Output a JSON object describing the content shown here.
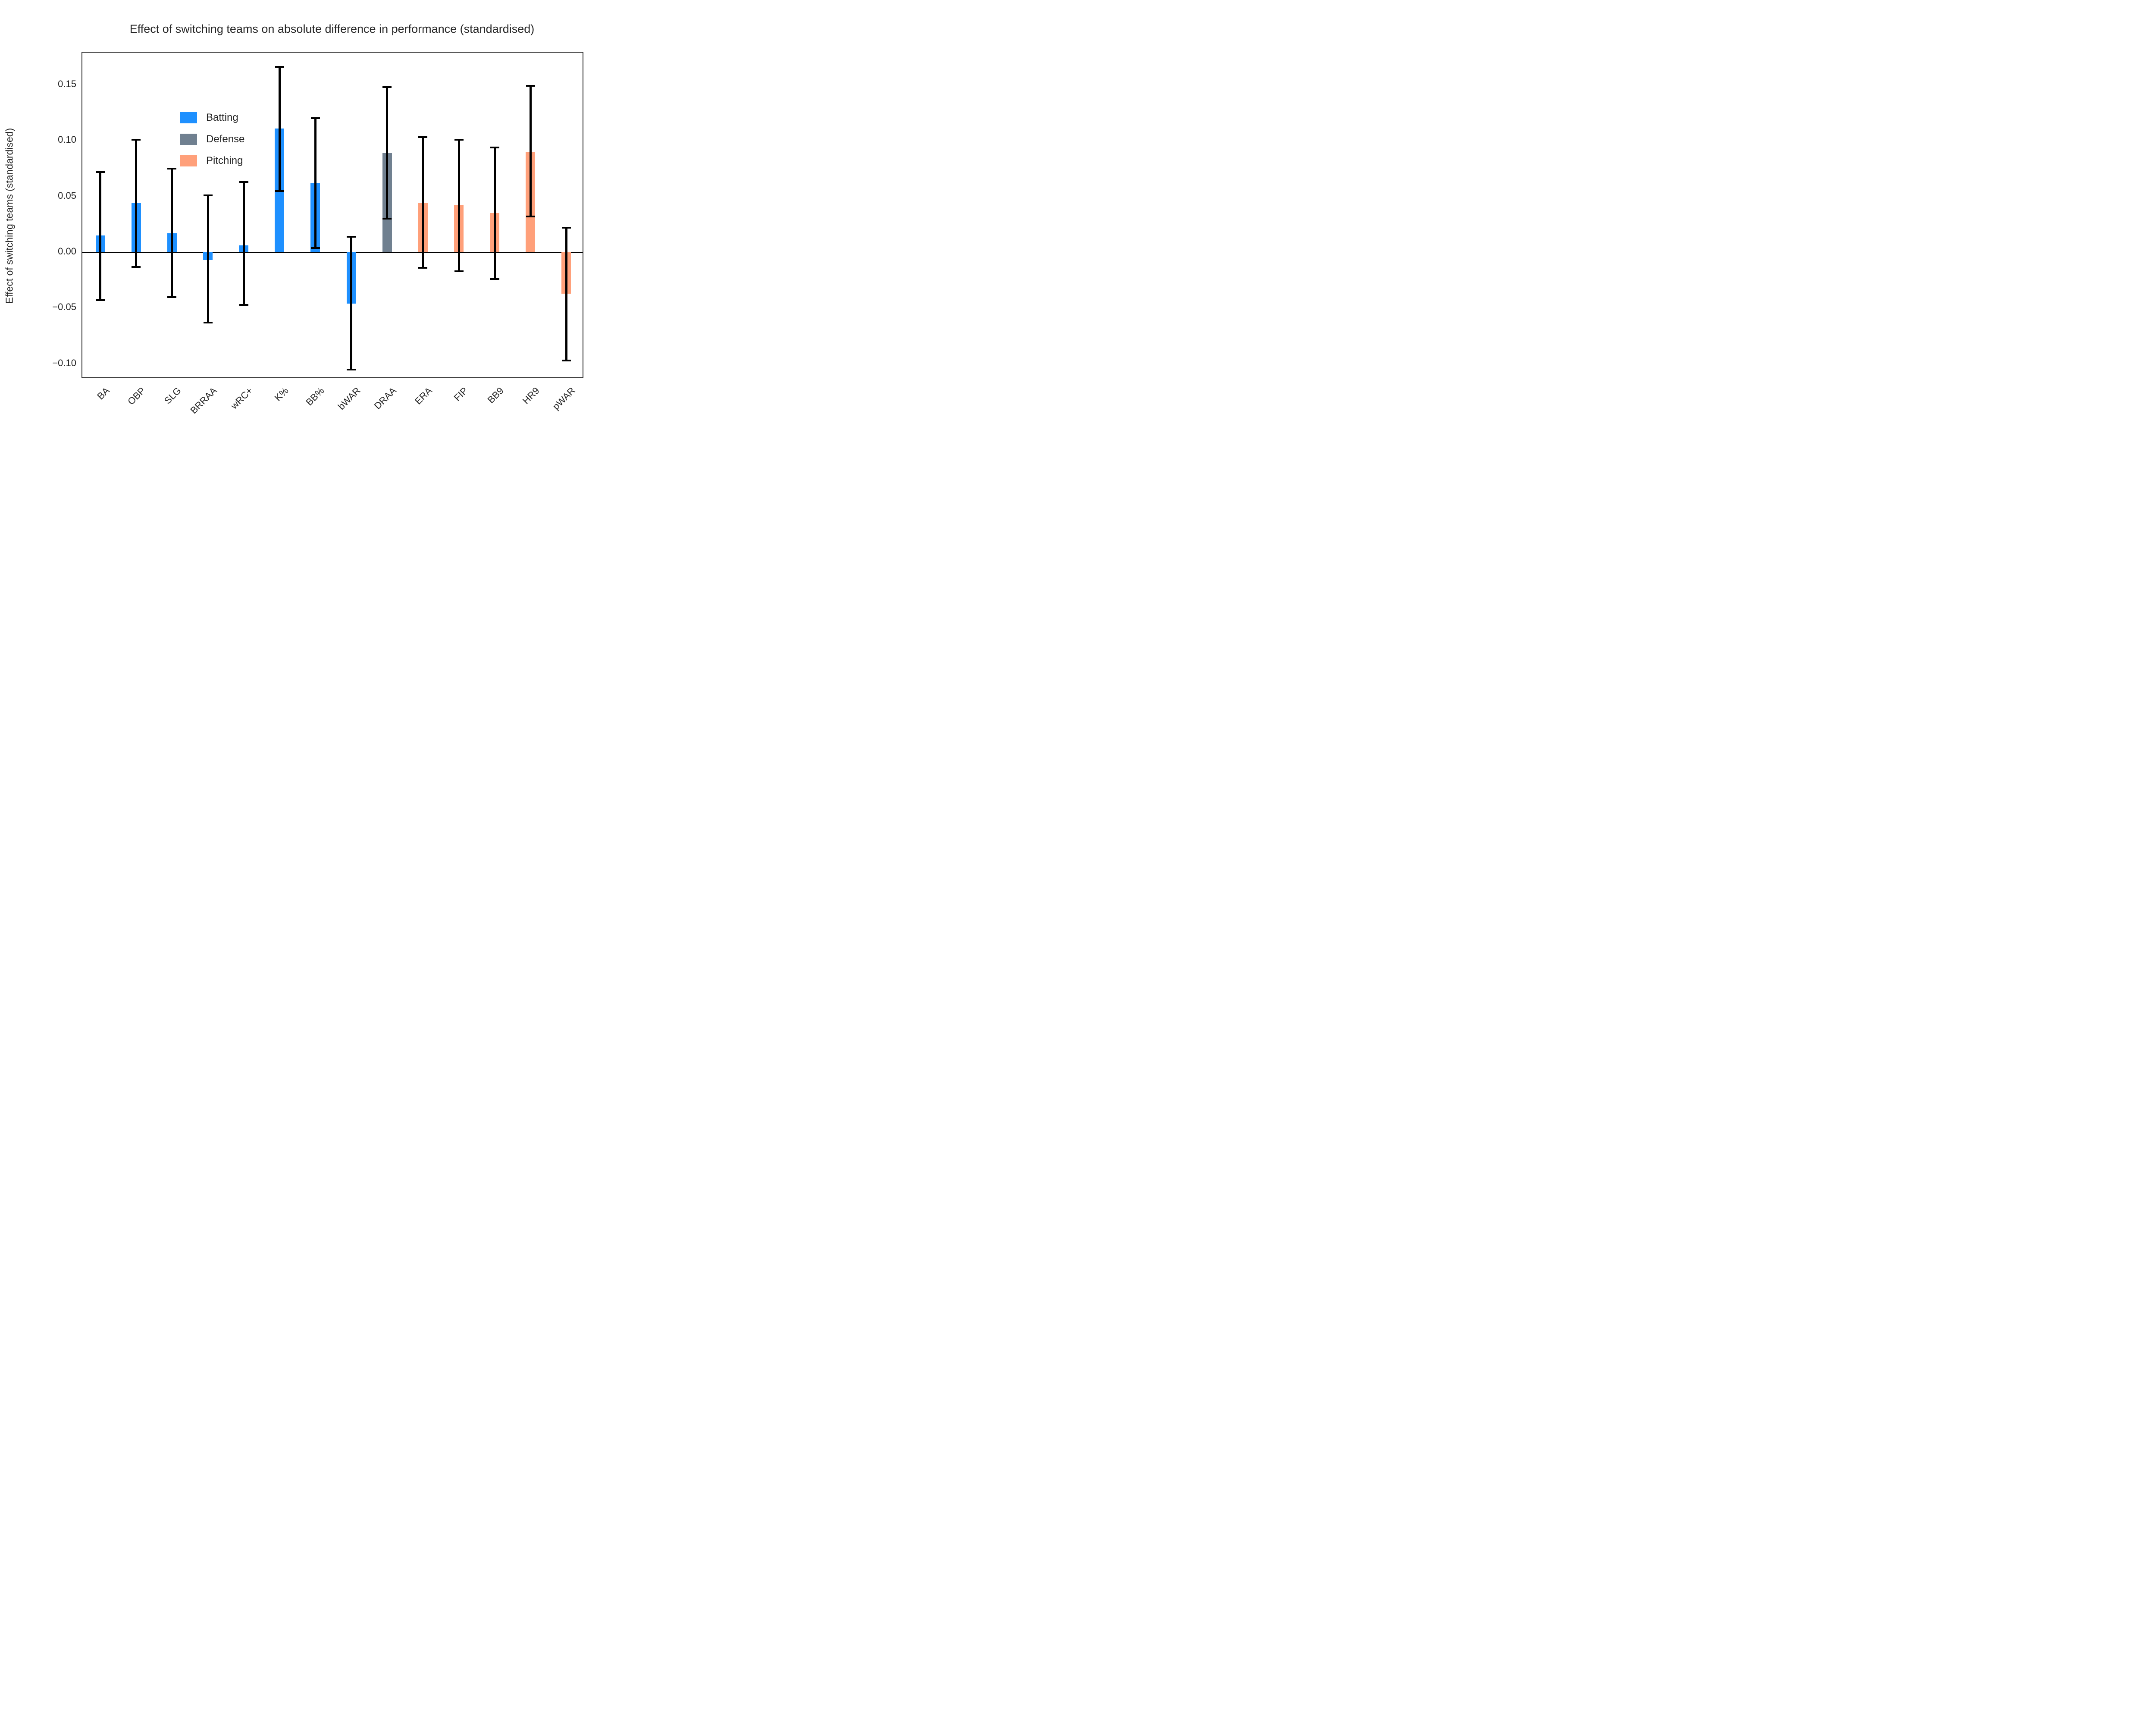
{
  "title": "Effect of switching teams on absolute difference in performance (standardised)",
  "ylabel": "Effect of switching teams (standardised)",
  "colors": {
    "batting": "#1E90FF",
    "defense": "#708090",
    "pitching": "#FFA07A",
    "errorbar": "#000000",
    "axis": "#262626",
    "background": "#ffffff"
  },
  "legend": {
    "position": "upper left",
    "items": [
      {
        "label": "Batting",
        "color": "#1E90FF"
      },
      {
        "label": "Defense",
        "color": "#708090"
      },
      {
        "label": "Pitching",
        "color": "#FFA07A"
      }
    ]
  },
  "chart_data": {
    "type": "bar",
    "title": "Effect of switching teams on absolute difference in performance (standardised)",
    "xlabel": "",
    "ylabel": "Effect of switching teams (standardised)",
    "grid": false,
    "legend_position": "upper left",
    "ylim": [
      -0.1136,
      0.1789
    ],
    "yticks": [
      0.15,
      0.1,
      0.05,
      0.0,
      -0.05,
      -0.1
    ],
    "ytick_labels": [
      "0.15",
      "0.10",
      "0.05",
      "0.00",
      "−0.05",
      "−0.10"
    ],
    "categories": [
      "BA",
      "OBP",
      "SLG",
      "BRRAA",
      "wRC+",
      "K%",
      "BB%",
      "bWAR",
      "DRAA",
      "ERA",
      "FIP",
      "BB9",
      "HR9",
      "pWAR"
    ],
    "groups": [
      "batting",
      "batting",
      "batting",
      "batting",
      "batting",
      "batting",
      "batting",
      "batting",
      "defense",
      "pitching",
      "pitching",
      "pitching",
      "pitching",
      "pitching"
    ],
    "values": [
      0.015,
      0.044,
      0.017,
      -0.007,
      0.006,
      0.111,
      0.062,
      -0.046,
      0.089,
      0.044,
      0.042,
      0.035,
      0.09,
      -0.037
    ],
    "error_low": [
      -0.043,
      -0.013,
      -0.04,
      -0.063,
      -0.047,
      0.055,
      0.004,
      -0.105,
      0.03,
      -0.014,
      -0.017,
      -0.024,
      0.032,
      -0.097
    ],
    "error_high": [
      0.072,
      0.101,
      0.075,
      0.051,
      0.063,
      0.166,
      0.12,
      0.014,
      0.148,
      0.103,
      0.101,
      0.094,
      0.149,
      0.022
    ]
  }
}
